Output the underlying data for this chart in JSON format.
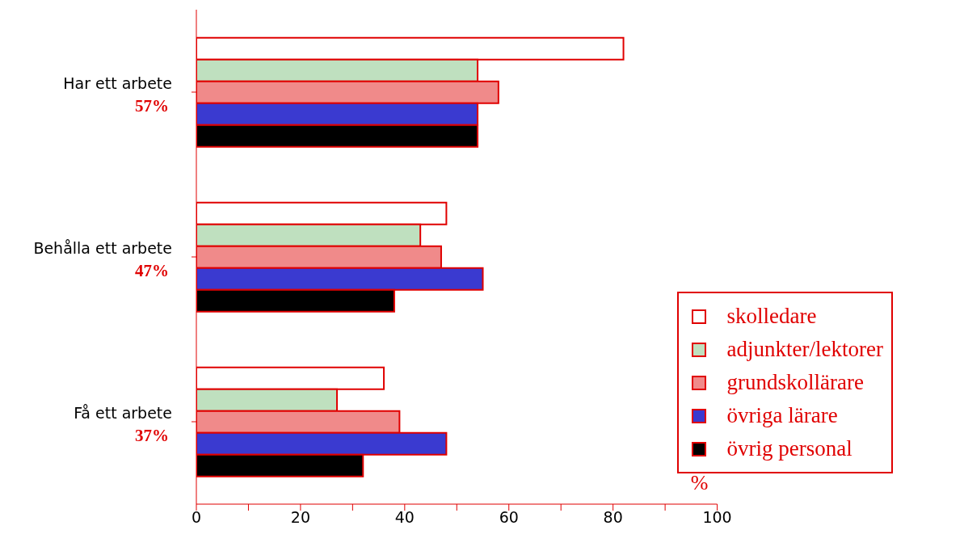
{
  "chart_data": {
    "type": "bar",
    "orientation": "horizontal",
    "xlabel": "%",
    "categories": [
      "Har ett arbete",
      "Behålla ett arbete",
      "Få ett arbete"
    ],
    "annotations": [
      "57%",
      "47%",
      "37%"
    ],
    "series": [
      {
        "name": "skolledare",
        "color": "#ffffff",
        "values": [
          82,
          48,
          36
        ]
      },
      {
        "name": "adjunkter/lektorer",
        "color": "#bfe0bf",
        "values": [
          54,
          43,
          27
        ]
      },
      {
        "name": "grundskollärare",
        "color": "#f08a8a",
        "values": [
          58,
          47,
          39
        ]
      },
      {
        "name": "övriga lärare",
        "color": "#3a3ad0",
        "values": [
          54,
          55,
          48
        ]
      },
      {
        "name": "övrig personal",
        "color": "#000000",
        "values": [
          54,
          38,
          32
        ]
      }
    ],
    "xlim": [
      0,
      100
    ],
    "xticks": [
      0,
      {
        "value": 10,
        "label": null
      },
      20,
      {
        "value": 30,
        "label": null
      },
      40,
      {
        "value": 50,
        "label": null
      },
      60,
      {
        "value": 70,
        "label": null
      },
      80,
      {
        "value": 90,
        "label": null
      },
      100
    ],
    "grid": false,
    "legend": "bottom right"
  }
}
